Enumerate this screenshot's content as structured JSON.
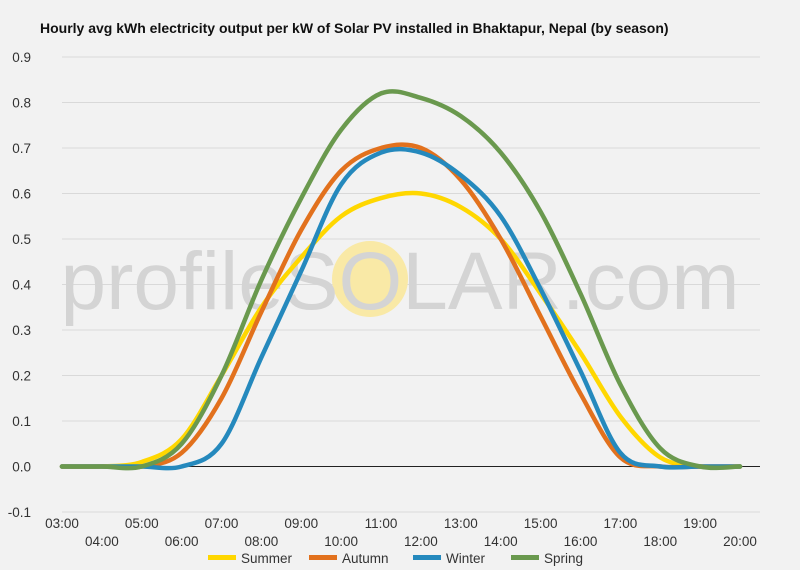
{
  "watermark": {
    "prefix": "profile",
    "brand": "SOLAR",
    "suffix": ".com",
    "sun_color": "#f9e9a6"
  },
  "chart_data": {
    "type": "line",
    "title": "Hourly avg kWh electricity output per kW of Solar PV installed in Bhaktapur, Nepal (by season)",
    "xlabel": "",
    "ylabel": "",
    "x": [
      "03:00",
      "04:00",
      "05:00",
      "06:00",
      "07:00",
      "08:00",
      "09:00",
      "10:00",
      "11:00",
      "12:00",
      "13:00",
      "14:00",
      "15:00",
      "16:00",
      "17:00",
      "18:00",
      "19:00",
      "20:00"
    ],
    "ylim": [
      -0.1,
      0.9
    ],
    "yticks": [
      "-0.1",
      "0.0",
      "0.1",
      "0.2",
      "0.3",
      "0.4",
      "0.5",
      "0.6",
      "0.7",
      "0.8",
      "0.9"
    ],
    "grid": true,
    "legend_position": "bottom",
    "series": [
      {
        "name": "Summer",
        "color": "#ffd700",
        "values": [
          0.0,
          0.0,
          0.01,
          0.06,
          0.2,
          0.35,
          0.46,
          0.55,
          0.59,
          0.6,
          0.57,
          0.5,
          0.38,
          0.25,
          0.11,
          0.02,
          0.0,
          0.0
        ]
      },
      {
        "name": "Autumn",
        "color": "#e2711d",
        "values": [
          0.0,
          0.0,
          0.0,
          0.03,
          0.15,
          0.34,
          0.52,
          0.65,
          0.7,
          0.7,
          0.63,
          0.5,
          0.33,
          0.16,
          0.02,
          0.0,
          0.0,
          0.0
        ]
      },
      {
        "name": "Winter",
        "color": "#2589bd",
        "values": [
          0.0,
          0.0,
          0.0,
          0.0,
          0.05,
          0.24,
          0.43,
          0.62,
          0.69,
          0.69,
          0.64,
          0.55,
          0.39,
          0.21,
          0.03,
          0.0,
          0.0,
          0.0
        ]
      },
      {
        "name": "Spring",
        "color": "#6a994e",
        "values": [
          0.0,
          0.0,
          0.0,
          0.05,
          0.2,
          0.41,
          0.59,
          0.74,
          0.82,
          0.81,
          0.77,
          0.69,
          0.56,
          0.38,
          0.18,
          0.04,
          0.0,
          0.0
        ]
      }
    ]
  }
}
